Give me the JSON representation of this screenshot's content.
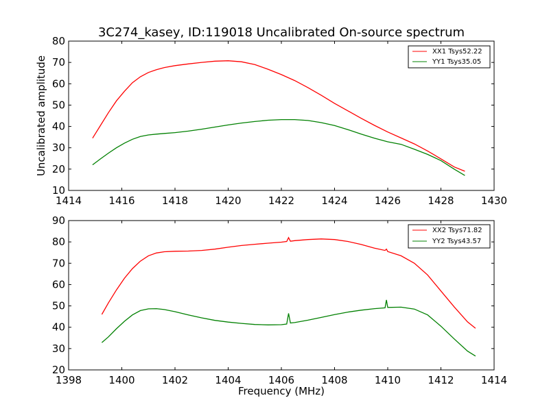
{
  "figure": {
    "title": "3C274_kasey, ID:119018 Uncalibrated On-source spectrum"
  },
  "chart_data": [
    {
      "type": "line",
      "title": "3C274_kasey, ID:119018 Uncalibrated On-source spectrum",
      "xlabel": "",
      "ylabel": "Uncalibrated amplitude",
      "xlim": [
        1414,
        1430
      ],
      "ylim": [
        10,
        80
      ],
      "xticks": [
        1414,
        1416,
        1418,
        1420,
        1422,
        1424,
        1426,
        1428,
        1430
      ],
      "yticks": [
        10,
        20,
        30,
        40,
        50,
        60,
        70,
        80
      ],
      "grid": false,
      "legend_position": "top-right",
      "series": [
        {
          "name": "XX1 Tsys52.22",
          "color": "#ff0000",
          "x": [
            1414.9,
            1415.2,
            1415.5,
            1415.8,
            1416.1,
            1416.4,
            1416.7,
            1417.0,
            1417.3,
            1417.6,
            1418.0,
            1418.5,
            1419.0,
            1419.5,
            1420.0,
            1420.5,
            1421.0,
            1421.5,
            1422.0,
            1422.5,
            1423.0,
            1423.5,
            1424.0,
            1424.5,
            1425.0,
            1425.5,
            1426.0,
            1426.5,
            1427.0,
            1427.5,
            1428.0,
            1428.5,
            1428.9
          ],
          "y": [
            34.5,
            40.5,
            46.5,
            52.0,
            56.5,
            60.5,
            63.3,
            65.3,
            66.6,
            67.6,
            68.5,
            69.3,
            70.0,
            70.6,
            70.8,
            70.3,
            69.0,
            66.8,
            64.3,
            61.5,
            58.2,
            54.6,
            50.8,
            47.3,
            43.8,
            40.5,
            37.4,
            34.6,
            31.8,
            28.5,
            24.8,
            21.0,
            19.0
          ]
        },
        {
          "name": "YY1 Tsys35.05",
          "color": "#008000",
          "x": [
            1414.9,
            1415.2,
            1415.5,
            1415.8,
            1416.1,
            1416.4,
            1416.7,
            1417.0,
            1417.3,
            1417.6,
            1418.0,
            1418.5,
            1419.0,
            1419.5,
            1420.0,
            1420.5,
            1421.0,
            1421.5,
            1422.0,
            1422.5,
            1423.0,
            1423.5,
            1424.0,
            1424.5,
            1425.0,
            1425.5,
            1426.0,
            1426.5,
            1427.0,
            1427.5,
            1428.0,
            1428.5,
            1428.9
          ],
          "y": [
            22.0,
            24.8,
            27.5,
            30.0,
            32.2,
            34.0,
            35.3,
            36.0,
            36.4,
            36.7,
            37.1,
            37.8,
            38.7,
            39.7,
            40.7,
            41.6,
            42.3,
            42.9,
            43.2,
            43.2,
            42.8,
            41.8,
            40.4,
            38.5,
            36.4,
            34.5,
            32.8,
            31.6,
            29.3,
            26.9,
            24.0,
            20.0,
            17.0
          ]
        }
      ]
    },
    {
      "type": "line",
      "title": "",
      "xlabel": "Frequency (MHz)",
      "ylabel": "",
      "xlim": [
        1398,
        1414
      ],
      "ylim": [
        20,
        90
      ],
      "xticks": [
        1398,
        1400,
        1402,
        1404,
        1406,
        1408,
        1410,
        1412,
        1414
      ],
      "yticks": [
        20,
        30,
        40,
        50,
        60,
        70,
        80,
        90
      ],
      "grid": false,
      "legend_position": "top-right",
      "series": [
        {
          "name": "XX2 Tsys71.82",
          "color": "#ff0000",
          "x": [
            1399.25,
            1399.5,
            1399.8,
            1400.1,
            1400.4,
            1400.7,
            1401.0,
            1401.3,
            1401.6,
            1402.0,
            1402.5,
            1403.0,
            1403.5,
            1404.0,
            1404.5,
            1405.0,
            1405.5,
            1406.0,
            1406.2,
            1406.27,
            1406.34,
            1406.5,
            1407.0,
            1407.5,
            1408.0,
            1408.5,
            1409.0,
            1409.5,
            1409.9,
            1409.95,
            1410.0,
            1410.5,
            1411.0,
            1411.5,
            1412.0,
            1412.5,
            1413.0,
            1413.3
          ],
          "y": [
            46.0,
            51.5,
            57.5,
            63.0,
            67.5,
            71.0,
            73.5,
            74.8,
            75.4,
            75.6,
            75.7,
            76.0,
            76.6,
            77.5,
            78.3,
            78.9,
            79.4,
            79.9,
            80.2,
            82.0,
            80.3,
            80.6,
            81.1,
            81.4,
            81.1,
            80.2,
            78.8,
            77.1,
            76.0,
            76.6,
            75.5,
            73.5,
            70.0,
            64.5,
            57.0,
            49.5,
            42.5,
            39.5
          ]
        },
        {
          "name": "YY2 Tsys43.57",
          "color": "#008000",
          "x": [
            1399.25,
            1399.5,
            1399.8,
            1400.1,
            1400.4,
            1400.7,
            1401.0,
            1401.3,
            1401.6,
            1402.0,
            1402.5,
            1403.0,
            1403.5,
            1404.0,
            1404.5,
            1405.0,
            1405.5,
            1406.0,
            1406.2,
            1406.27,
            1406.34,
            1406.5,
            1407.0,
            1407.5,
            1408.0,
            1408.5,
            1409.0,
            1409.5,
            1409.9,
            1409.95,
            1410.0,
            1410.5,
            1411.0,
            1411.5,
            1412.0,
            1412.5,
            1413.0,
            1413.3
          ],
          "y": [
            32.8,
            35.5,
            39.3,
            42.8,
            45.8,
            47.8,
            48.6,
            48.7,
            48.3,
            47.3,
            45.8,
            44.4,
            43.2,
            42.4,
            41.8,
            41.3,
            41.1,
            41.2,
            41.5,
            46.5,
            42.0,
            42.2,
            43.3,
            44.6,
            45.9,
            47.1,
            48.0,
            48.7,
            49.1,
            52.8,
            49.3,
            49.4,
            48.5,
            45.8,
            40.5,
            34.5,
            28.8,
            26.5
          ]
        }
      ]
    }
  ]
}
